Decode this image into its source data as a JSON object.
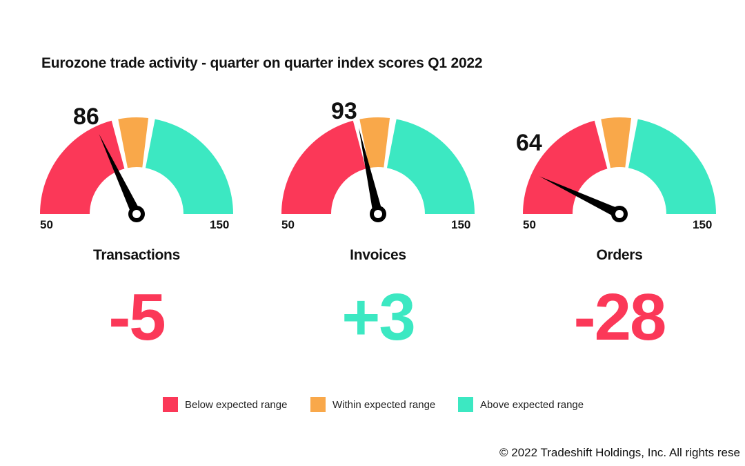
{
  "colors": {
    "below": "#fb3858",
    "within": "#f9a84a",
    "above": "#3ce8c2",
    "needle": "#000000"
  },
  "chart_data": {
    "type": "gauge",
    "title": "Eurozone trade activity - quarter on quarter index scores Q1 2022",
    "range": [
      50,
      150
    ],
    "gauges": [
      {
        "name": "Transactions",
        "value": 86,
        "change": "-5",
        "change_status": "below",
        "min_label": "50",
        "max_label": "150"
      },
      {
        "name": "Invoices",
        "value": 93,
        "change": "+3",
        "change_status": "above",
        "min_label": "50",
        "max_label": "150"
      },
      {
        "name": "Orders",
        "value": 64,
        "change": "-28",
        "change_status": "below",
        "min_label": "50",
        "max_label": "150"
      }
    ],
    "legend": [
      {
        "label": "Below expected range",
        "status": "below"
      },
      {
        "label": "Within expected range",
        "status": "within"
      },
      {
        "label": "Above expected range",
        "status": "above"
      }
    ]
  },
  "copyright": "© 2022 Tradeshift Holdings, Inc. All rights rese"
}
